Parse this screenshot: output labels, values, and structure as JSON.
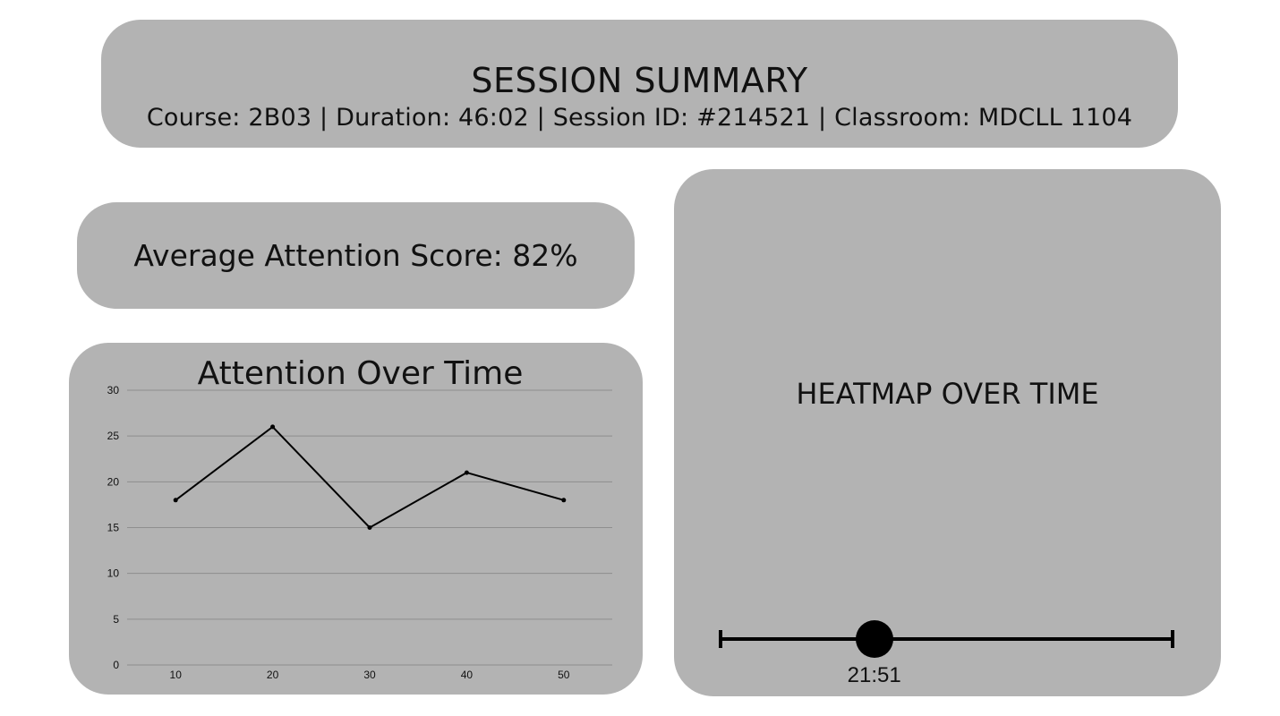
{
  "summary": {
    "title": "SESSION SUMMARY",
    "details": "Course: 2B03 | Duration: 46:02 | Session ID: #214521 | Classroom: MDCLL 1104"
  },
  "average": {
    "text": "Average Attention Score: 82%"
  },
  "chart_data": {
    "type": "line",
    "title": "Attention Over Time",
    "x": [
      10,
      20,
      30,
      40,
      50
    ],
    "series": [
      {
        "values": [
          18,
          26,
          15,
          21,
          18
        ]
      }
    ],
    "ylim": [
      0,
      30
    ],
    "yticks": [
      0,
      5,
      10,
      15,
      20,
      25,
      30
    ],
    "grid": true,
    "line_color": "#000000",
    "grid_color": "#8e8e8e"
  },
  "heatmap": {
    "title": "HEATMAP OVER TIME",
    "slider": {
      "value_fraction": 0.34,
      "time_label": "21:51"
    }
  },
  "colors": {
    "card_background": "#b3b3b3",
    "page_background": "#ffffff"
  }
}
